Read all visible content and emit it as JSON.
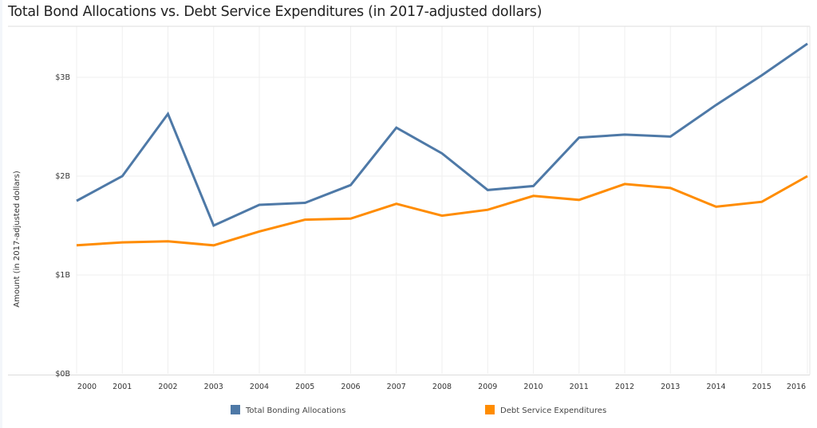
{
  "chart_data": {
    "type": "line",
    "title": "Total Bond Allocations vs. Debt Service Expenditures (in 2017-adjusted dollars)",
    "xlabel": "",
    "ylabel": "Amount (in 2017-adjusted dollars)",
    "x": [
      "2000",
      "2001",
      "2002",
      "2003",
      "2004",
      "2005",
      "2006",
      "2007",
      "2008",
      "2009",
      "2010",
      "2011",
      "2012",
      "2013",
      "2014",
      "2015",
      "2016"
    ],
    "ylim": [
      0,
      3.4
    ],
    "yticks": [
      {
        "value": 0,
        "label": "$0B"
      },
      {
        "value": 1,
        "label": "$1B"
      },
      {
        "value": 2,
        "label": "$2B"
      },
      {
        "value": 3,
        "label": "$3B"
      }
    ],
    "y_units": "billions of dollars",
    "grid": true,
    "legend_position": "bottom",
    "series": [
      {
        "name": "Total Bonding Allocations",
        "color": "#4e79a7",
        "values": [
          1.75,
          2.0,
          2.63,
          1.5,
          1.71,
          1.73,
          1.91,
          2.49,
          2.23,
          1.86,
          1.9,
          2.39,
          2.42,
          2.4,
          2.72,
          3.02,
          3.34
        ]
      },
      {
        "name": "Debt Service Expenditures",
        "color": "#ff8c00",
        "values": [
          1.3,
          1.33,
          1.34,
          1.3,
          1.44,
          1.56,
          1.57,
          1.72,
          1.6,
          1.66,
          1.8,
          1.76,
          1.92,
          1.88,
          1.69,
          1.74,
          2.0
        ]
      }
    ]
  }
}
